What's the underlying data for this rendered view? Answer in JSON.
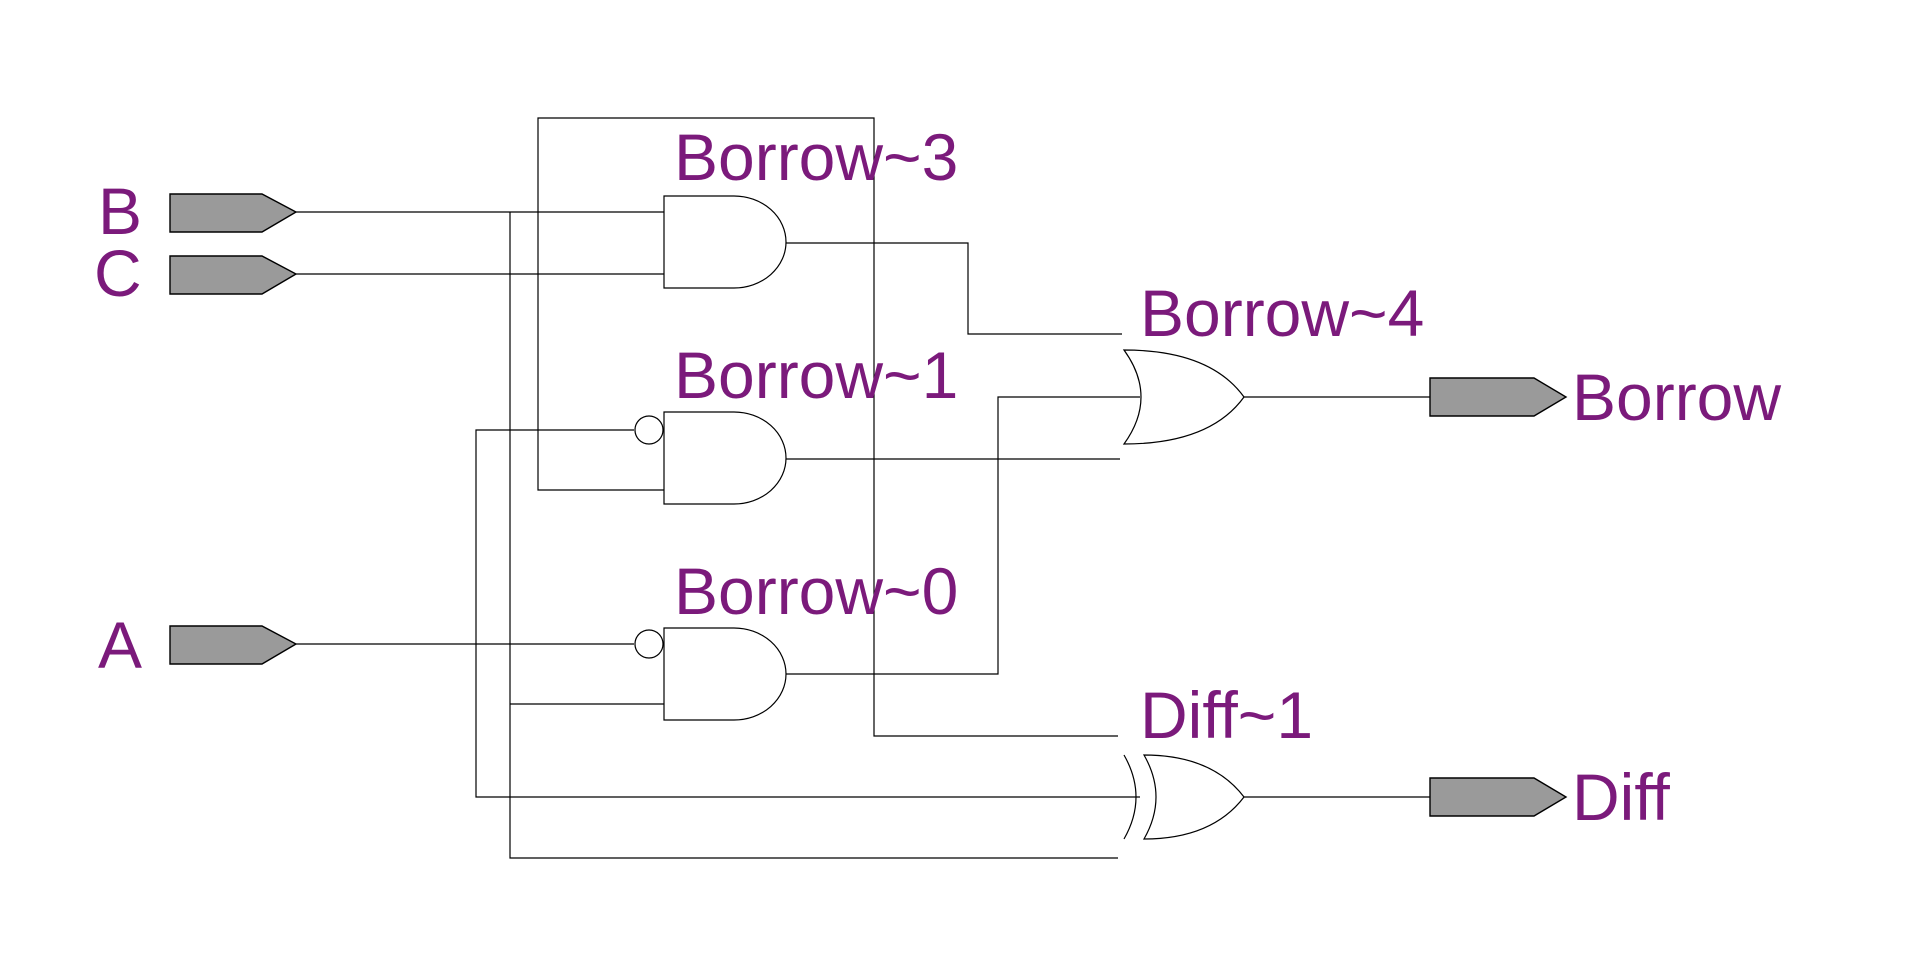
{
  "colors": {
    "label": "#7b1a7b",
    "port_fill": "#9a9a9a",
    "wire": "#000000"
  },
  "inputs": {
    "b": "B",
    "c": "C",
    "a": "A"
  },
  "outputs": {
    "borrow": "Borrow",
    "diff": "Diff"
  },
  "gates": {
    "borrow3": "Borrow~3",
    "borrow1": "Borrow~1",
    "borrow0": "Borrow~0",
    "borrow4": "Borrow~4",
    "diff1": "Diff~1"
  }
}
